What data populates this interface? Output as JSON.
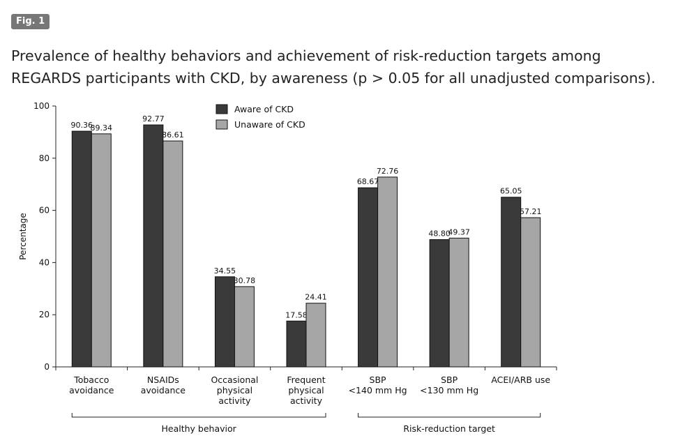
{
  "figure": {
    "badge": "Fig. 1",
    "caption": "Prevalence of healthy behaviors and achievement of risk-reduction targets among REGARDS participants with CKD, by awareness (p > 0.05 for all unadjusted comparisons)."
  },
  "colors": {
    "aware": "#3a3a3a",
    "unaware": "#a6a6a6",
    "axis": "#222222"
  },
  "chart_data": {
    "type": "bar",
    "title": "",
    "xlabel": "",
    "ylabel": "Percentage",
    "ylim": [
      0,
      100
    ],
    "yticks": [
      0,
      20,
      40,
      60,
      80,
      100
    ],
    "categories": [
      [
        "Tobacco",
        "avoidance"
      ],
      [
        "NSAIDs",
        "avoidance"
      ],
      [
        "Occasional",
        "physical",
        "activity"
      ],
      [
        "Frequent",
        "physical",
        "activity"
      ],
      [
        "SBP",
        "<140 mm Hg"
      ],
      [
        "SBP",
        "<130 mm Hg"
      ],
      [
        "ACEI/ARB use"
      ]
    ],
    "series": [
      {
        "name": "Aware of CKD",
        "values": [
          90.36,
          92.77,
          34.55,
          17.58,
          68.67,
          48.8,
          65.05
        ],
        "labels": [
          "90.36",
          "92.77",
          "34.55",
          "17.58",
          "68.67",
          "48.80",
          "65.05"
        ]
      },
      {
        "name": "Unaware of CKD",
        "values": [
          89.34,
          86.61,
          30.78,
          24.41,
          72.76,
          49.37,
          57.21
        ],
        "labels": [
          "89.34",
          "86.61",
          "30.78",
          "24.41",
          "72.76",
          "49.37",
          "57.21"
        ]
      }
    ],
    "groups": [
      {
        "label": "Healthy behavior",
        "from": 0,
        "to": 3
      },
      {
        "label": "Risk-reduction target",
        "from": 4,
        "to": 6
      }
    ],
    "legend_position": "top-center",
    "grid": false
  }
}
